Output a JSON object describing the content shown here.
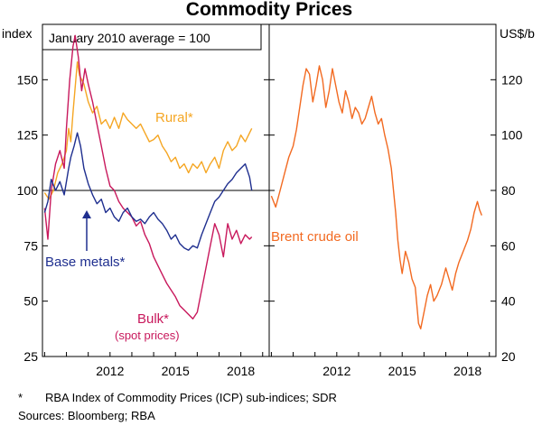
{
  "chart_data": {
    "type": "line",
    "title": "Commodity Prices",
    "left_panel": {
      "axis_label": "index",
      "ylim": [
        25,
        175
      ],
      "yticks": [
        25,
        50,
        75,
        100,
        125,
        150
      ],
      "x_ticks": [
        2012,
        2015,
        2018
      ],
      "x_range": [
        2008.9,
        2019.3
      ],
      "annotation": "January 2010 average = 100",
      "reference_line": 100,
      "series": [
        {
          "name": "Rural*",
          "color": "#f5a623",
          "points": [
            [
              2009.0,
              99
            ],
            [
              2009.2,
              96
            ],
            [
              2009.4,
              100
            ],
            [
              2009.6,
              108
            ],
            [
              2009.8,
              112
            ],
            [
              2010.0,
              118
            ],
            [
              2010.1,
              128
            ],
            [
              2010.2,
              122
            ],
            [
              2010.3,
              135
            ],
            [
              2010.5,
              158
            ],
            [
              2010.6,
              152
            ],
            [
              2010.8,
              148
            ],
            [
              2011.0,
              140
            ],
            [
              2011.2,
              135
            ],
            [
              2011.4,
              138
            ],
            [
              2011.6,
              130
            ],
            [
              2011.8,
              132
            ],
            [
              2012.0,
              128
            ],
            [
              2012.2,
              133
            ],
            [
              2012.4,
              128
            ],
            [
              2012.6,
              135
            ],
            [
              2012.8,
              132
            ],
            [
              2013.0,
              130
            ],
            [
              2013.2,
              128
            ],
            [
              2013.4,
              130
            ],
            [
              2013.6,
              126
            ],
            [
              2013.8,
              122
            ],
            [
              2014.0,
              123
            ],
            [
              2014.2,
              125
            ],
            [
              2014.4,
              120
            ],
            [
              2014.6,
              117
            ],
            [
              2014.8,
              113
            ],
            [
              2015.0,
              115
            ],
            [
              2015.2,
              110
            ],
            [
              2015.4,
              112
            ],
            [
              2015.6,
              108
            ],
            [
              2015.8,
              112
            ],
            [
              2016.0,
              110
            ],
            [
              2016.2,
              113
            ],
            [
              2016.4,
              108
            ],
            [
              2016.6,
              112
            ],
            [
              2016.8,
              115
            ],
            [
              2017.0,
              110
            ],
            [
              2017.2,
              118
            ],
            [
              2017.4,
              122
            ],
            [
              2017.6,
              118
            ],
            [
              2017.8,
              120
            ],
            [
              2018.0,
              125
            ],
            [
              2018.2,
              122
            ],
            [
              2018.4,
              126
            ],
            [
              2018.5,
              128
            ]
          ]
        },
        {
          "name": "Base metals*",
          "color": "#1f2f8f",
          "points": [
            [
              2009.0,
              90
            ],
            [
              2009.15,
              95
            ],
            [
              2009.3,
              105
            ],
            [
              2009.5,
              100
            ],
            [
              2009.7,
              104
            ],
            [
              2009.9,
              98
            ],
            [
              2010.1,
              110
            ],
            [
              2010.2,
              115
            ],
            [
              2010.35,
              120
            ],
            [
              2010.5,
              126
            ],
            [
              2010.65,
              120
            ],
            [
              2010.8,
              110
            ],
            [
              2011.0,
              103
            ],
            [
              2011.2,
              98
            ],
            [
              2011.4,
              94
            ],
            [
              2011.6,
              96
            ],
            [
              2011.8,
              90
            ],
            [
              2012.0,
              92
            ],
            [
              2012.2,
              88
            ],
            [
              2012.4,
              86
            ],
            [
              2012.6,
              90
            ],
            [
              2012.8,
              92
            ],
            [
              2013.0,
              88
            ],
            [
              2013.2,
              86
            ],
            [
              2013.4,
              87
            ],
            [
              2013.6,
              85
            ],
            [
              2013.8,
              88
            ],
            [
              2014.0,
              90
            ],
            [
              2014.2,
              87
            ],
            [
              2014.4,
              85
            ],
            [
              2014.6,
              82
            ],
            [
              2014.8,
              78
            ],
            [
              2015.0,
              80
            ],
            [
              2015.2,
              76
            ],
            [
              2015.4,
              74
            ],
            [
              2015.6,
              73
            ],
            [
              2015.8,
              75
            ],
            [
              2016.0,
              74
            ],
            [
              2016.2,
              80
            ],
            [
              2016.4,
              85
            ],
            [
              2016.6,
              90
            ],
            [
              2016.8,
              95
            ],
            [
              2017.0,
              97
            ],
            [
              2017.2,
              100
            ],
            [
              2017.4,
              103
            ],
            [
              2017.6,
              105
            ],
            [
              2017.8,
              108
            ],
            [
              2018.0,
              110
            ],
            [
              2018.2,
              112
            ],
            [
              2018.4,
              106
            ],
            [
              2018.5,
              100
            ]
          ]
        },
        {
          "name": "Bulk*",
          "color": "#c8185c",
          "points": [
            [
              2009.0,
              92
            ],
            [
              2009.15,
              78
            ],
            [
              2009.3,
              100
            ],
            [
              2009.5,
              112
            ],
            [
              2009.7,
              118
            ],
            [
              2009.9,
              110
            ],
            [
              2010.0,
              128
            ],
            [
              2010.15,
              150
            ],
            [
              2010.3,
              165
            ],
            [
              2010.4,
              170
            ],
            [
              2010.55,
              160
            ],
            [
              2010.7,
              145
            ],
            [
              2010.85,
              155
            ],
            [
              2011.0,
              148
            ],
            [
              2011.2,
              140
            ],
            [
              2011.4,
              130
            ],
            [
              2011.6,
              120
            ],
            [
              2011.8,
              110
            ],
            [
              2012.0,
              102
            ],
            [
              2012.2,
              100
            ],
            [
              2012.4,
              95
            ],
            [
              2012.6,
              92
            ],
            [
              2012.8,
              90
            ],
            [
              2013.0,
              88
            ],
            [
              2013.2,
              84
            ],
            [
              2013.4,
              86
            ],
            [
              2013.6,
              80
            ],
            [
              2013.8,
              76
            ],
            [
              2014.0,
              70
            ],
            [
              2014.2,
              66
            ],
            [
              2014.4,
              62
            ],
            [
              2014.6,
              58
            ],
            [
              2014.8,
              55
            ],
            [
              2015.0,
              52
            ],
            [
              2015.2,
              48
            ],
            [
              2015.4,
              46
            ],
            [
              2015.6,
              44
            ],
            [
              2015.8,
              42
            ],
            [
              2016.0,
              45
            ],
            [
              2016.2,
              55
            ],
            [
              2016.4,
              65
            ],
            [
              2016.6,
              75
            ],
            [
              2016.8,
              85
            ],
            [
              2017.0,
              80
            ],
            [
              2017.2,
              70
            ],
            [
              2017.4,
              85
            ],
            [
              2017.6,
              78
            ],
            [
              2017.8,
              82
            ],
            [
              2018.0,
              76
            ],
            [
              2018.2,
              80
            ],
            [
              2018.4,
              78
            ],
            [
              2018.5,
              79
            ]
          ]
        }
      ]
    },
    "right_panel": {
      "axis_label": "US$/b",
      "ylim": [
        20,
        140
      ],
      "yticks": [
        20,
        40,
        60,
        80,
        100,
        120
      ],
      "x_ticks": [
        2012,
        2015,
        2018
      ],
      "x_range": [
        2008.9,
        2019.3
      ],
      "series": [
        {
          "name": "Brent crude oil",
          "color": "#f26a21",
          "points": [
            [
              2009.0,
              78
            ],
            [
              2009.2,
              74
            ],
            [
              2009.4,
              80
            ],
            [
              2009.6,
              86
            ],
            [
              2009.8,
              92
            ],
            [
              2010.0,
              96
            ],
            [
              2010.15,
              102
            ],
            [
              2010.3,
              110
            ],
            [
              2010.45,
              118
            ],
            [
              2010.6,
              124
            ],
            [
              2010.75,
              122
            ],
            [
              2010.9,
              112
            ],
            [
              2011.05,
              118
            ],
            [
              2011.2,
              125
            ],
            [
              2011.35,
              120
            ],
            [
              2011.5,
              110
            ],
            [
              2011.65,
              116
            ],
            [
              2011.8,
              124
            ],
            [
              2011.95,
              118
            ],
            [
              2012.1,
              112
            ],
            [
              2012.25,
              108
            ],
            [
              2012.4,
              116
            ],
            [
              2012.55,
              112
            ],
            [
              2012.7,
              106
            ],
            [
              2012.85,
              110
            ],
            [
              2013.0,
              108
            ],
            [
              2013.15,
              104
            ],
            [
              2013.3,
              106
            ],
            [
              2013.45,
              110
            ],
            [
              2013.6,
              114
            ],
            [
              2013.75,
              108
            ],
            [
              2013.9,
              104
            ],
            [
              2014.05,
              106
            ],
            [
              2014.2,
              100
            ],
            [
              2014.35,
              95
            ],
            [
              2014.5,
              88
            ],
            [
              2014.6,
              80
            ],
            [
              2014.7,
              72
            ],
            [
              2014.8,
              62
            ],
            [
              2014.9,
              55
            ],
            [
              2015.0,
              50
            ],
            [
              2015.15,
              58
            ],
            [
              2015.3,
              54
            ],
            [
              2015.45,
              48
            ],
            [
              2015.6,
              45
            ],
            [
              2015.75,
              32
            ],
            [
              2015.85,
              30
            ],
            [
              2016.0,
              36
            ],
            [
              2016.15,
              42
            ],
            [
              2016.3,
              46
            ],
            [
              2016.45,
              40
            ],
            [
              2016.6,
              42
            ],
            [
              2016.8,
              46
            ],
            [
              2017.0,
              52
            ],
            [
              2017.15,
              48
            ],
            [
              2017.3,
              44
            ],
            [
              2017.45,
              50
            ],
            [
              2017.6,
              54
            ],
            [
              2017.8,
              58
            ],
            [
              2018.0,
              62
            ],
            [
              2018.15,
              66
            ],
            [
              2018.3,
              72
            ],
            [
              2018.45,
              76
            ],
            [
              2018.55,
              73
            ],
            [
              2018.65,
              71
            ]
          ]
        }
      ]
    }
  },
  "labels": {
    "rural": "Rural*",
    "base_metals": "Base metals*",
    "bulk": "Bulk*",
    "spot_prices": "(spot prices)",
    "brent": "Brent crude oil"
  },
  "footnotes": {
    "star": "*",
    "note": "RBA Index of Commodity Prices (ICP) sub-indices; SDR",
    "sources": "Sources: Bloomberg; RBA"
  }
}
